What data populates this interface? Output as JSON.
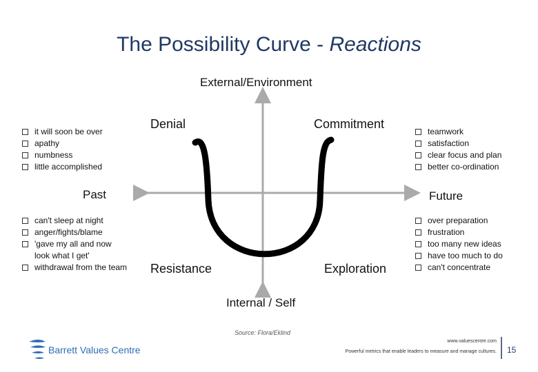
{
  "title": {
    "main": "The Possibility Curve - ",
    "emphasis": "Reactions"
  },
  "axes": {
    "top": "External/Environment",
    "bottom": "Internal / Self",
    "left": "Past",
    "right": "Future"
  },
  "quadrants": {
    "top_left": "Denial",
    "top_right": "Commitment",
    "bottom_left": "Resistance",
    "bottom_right": "Exploration"
  },
  "lists": {
    "top_left": [
      "it will soon be over",
      "apathy",
      "numbness",
      "little accomplished"
    ],
    "bottom_left": [
      "can't sleep at night",
      "anger/fights/blame",
      "'gave my all and now look what I get'",
      "withdrawal from the team"
    ],
    "top_right": [
      "teamwork",
      "satisfaction",
      "clear focus and plan",
      "better co-ordination"
    ],
    "bottom_right": [
      "over preparation",
      "frustration",
      "too many new ideas",
      "have too much to do",
      "can't concentrate"
    ]
  },
  "source": "Source: Flora/Eklind",
  "footer": {
    "logo": "Barrett Values Centre",
    "url": "www.valuescentre.com",
    "tagline": "Powerful metrics that enable leaders to measure and manage cultures.",
    "page": "15"
  }
}
